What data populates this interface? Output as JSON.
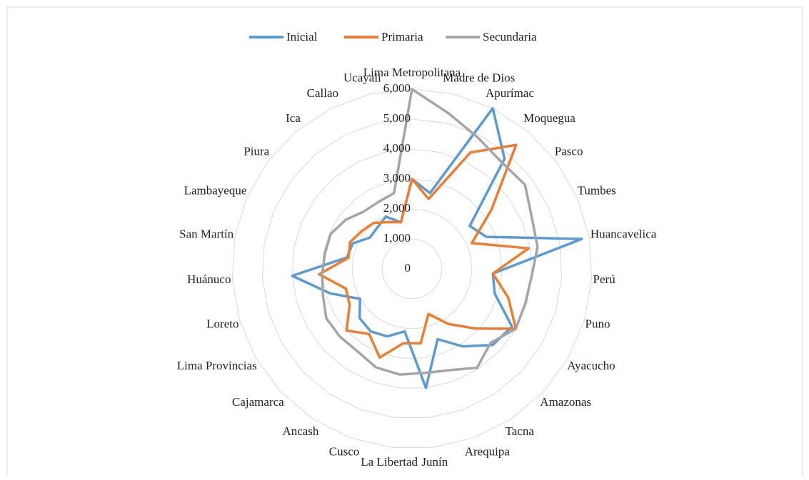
{
  "chart_data": {
    "type": "radar",
    "categories": [
      "Lima Metropolitana",
      "Madre de Dios",
      "Apurímac",
      "Moquegua",
      "Pasco",
      "Tumbes",
      "Huancavelica",
      "Perú",
      "Puno",
      "Ayacucho",
      "Amazonas",
      "Tacna",
      "Arequipa",
      "Junín",
      "La Libertad",
      "Cusco",
      "Ancash",
      "Cajamarca",
      "Lima Provincias",
      "Loreto",
      "Huánuco",
      "San Martín",
      "Lambayeque",
      "Piura",
      "Ica",
      "Callao",
      "Ucayali"
    ],
    "series": [
      {
        "name": "Inicial",
        "color": "#5b9bd5",
        "values": [
          3000,
          2600,
          6000,
          4800,
          2400,
          2700,
          5750,
          2700,
          2880,
          3850,
          3700,
          3100,
          2500,
          4000,
          2100,
          2400,
          2500,
          2400,
          2000,
          2850,
          4000,
          2200,
          2150,
          1750,
          1800,
          1950,
          1600
        ]
      },
      {
        "name": "Primaria",
        "color": "#ed7d31",
        "values": [
          3000,
          2400,
          4350,
          5400,
          3300,
          2170,
          3950,
          2700,
          3350,
          4000,
          2900,
          2200,
          1600,
          2500,
          2500,
          3150,
          2600,
          3000,
          2400,
          2300,
          3100,
          2150,
          2250,
          2100,
          2000,
          1750,
          1600
        ]
      },
      {
        "name": "Secundaria",
        "color": "#a5a5a5",
        "values": [
          6000,
          5330,
          4900,
          4650,
          4700,
          4350,
          4250,
          4000,
          3950,
          4000,
          3600,
          3950,
          3600,
          3500,
          3550,
          3500,
          3300,
          3300,
          3300,
          3100,
          3000,
          2950,
          2950,
          2750,
          2500,
          2500,
          2600
        ]
      }
    ],
    "ylim": [
      0,
      6000
    ],
    "yticks": [
      0,
      {
        "value": 1000,
        "label": "1,000"
      },
      {
        "value": 2000,
        "label": "2,000"
      },
      {
        "value": 3000,
        "label": "3,000"
      },
      {
        "value": 4000,
        "label": "4,000"
      },
      {
        "value": 5000,
        "label": "5,000"
      },
      {
        "value": 6000,
        "label": "6,000"
      }
    ],
    "grid": true,
    "legend": "top"
  }
}
